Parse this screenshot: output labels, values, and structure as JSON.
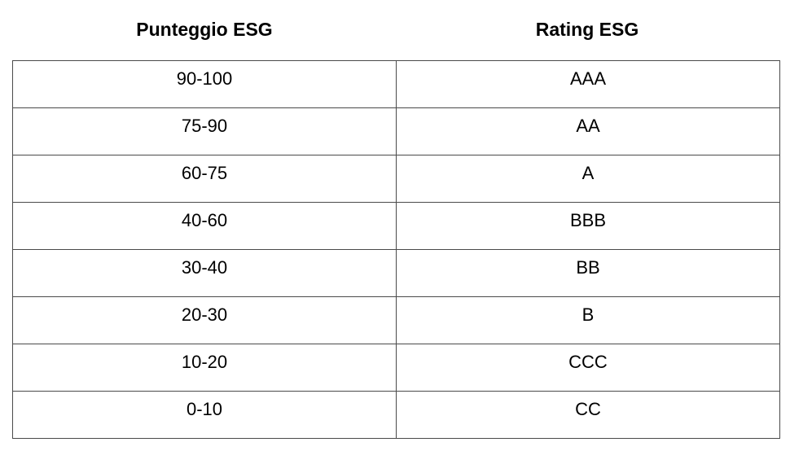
{
  "headers": {
    "score": "Punteggio ESG",
    "rating": "Rating ESG"
  },
  "rows": [
    {
      "score": "90-100",
      "rating": "AAA"
    },
    {
      "score": "75-90",
      "rating": "AA"
    },
    {
      "score": "60-75",
      "rating": "A"
    },
    {
      "score": "40-60",
      "rating": "BBB"
    },
    {
      "score": "30-40",
      "rating": "BB"
    },
    {
      "score": "20-30",
      "rating": "B"
    },
    {
      "score": "10-20",
      "rating": "CCC"
    },
    {
      "score": "0-10",
      "rating": "CC"
    }
  ]
}
